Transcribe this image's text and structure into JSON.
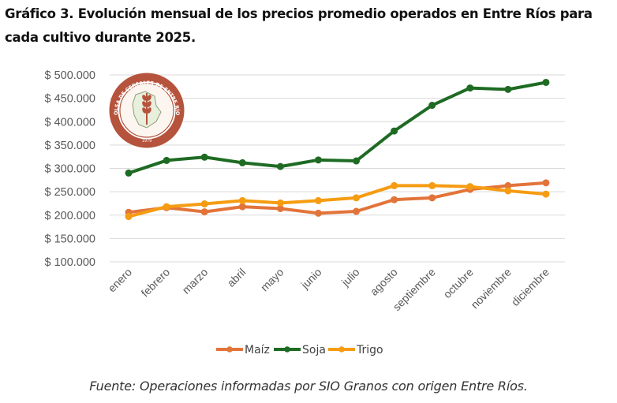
{
  "title": "Gráfico 3. Evolución mensual de los precios promedio operados en Entre Ríos para cada cultivo durante 2025.",
  "source": "Fuente: Operaciones informadas por SIO Granos con origen Entre Ríos.",
  "logo": {
    "text": "BOLSA DE CEREALES DE ENTRE RÍOS",
    "year": "1979",
    "color": "#b5533c"
  },
  "chart_data": {
    "type": "line",
    "title": "Gráfico 3. Evolución mensual de los precios promedio operados en Entre Ríos para cada cultivo durante 2025.",
    "xlabel": "",
    "ylabel": "",
    "categories": [
      "enero",
      "febrero",
      "marzo",
      "abril",
      "mayo",
      "junio",
      "julio",
      "agosto",
      "septiembre",
      "octubre",
      "noviembre",
      "diciembre"
    ],
    "ylim": [
      100000,
      500000
    ],
    "yticks": [
      100000,
      150000,
      200000,
      250000,
      300000,
      350000,
      400000,
      450000,
      500000
    ],
    "ytick_labels": [
      "$ 100.000",
      "$ 150.000",
      "$ 200.000",
      "$ 250.000",
      "$ 300.000",
      "$ 350.000",
      "$ 400.000",
      "$ 450.000",
      "$ 500.000"
    ],
    "grid": true,
    "legend_position": "bottom",
    "series": [
      {
        "name": "Maíz",
        "color": "#e2743a",
        "values": [
          206000,
          216000,
          207000,
          218000,
          214000,
          204000,
          208000,
          233000,
          237000,
          255000,
          263000,
          269000
        ]
      },
      {
        "name": "Soja",
        "color": "#1e6b23",
        "values": [
          290000,
          317000,
          324000,
          312000,
          304000,
          318000,
          316000,
          380000,
          435000,
          472000,
          469000,
          484000
        ]
      },
      {
        "name": "Trigo",
        "color": "#f59c12",
        "values": [
          197000,
          218000,
          224000,
          231000,
          226000,
          231000,
          237000,
          263000,
          263000,
          261000,
          252000,
          245000
        ]
      }
    ]
  }
}
